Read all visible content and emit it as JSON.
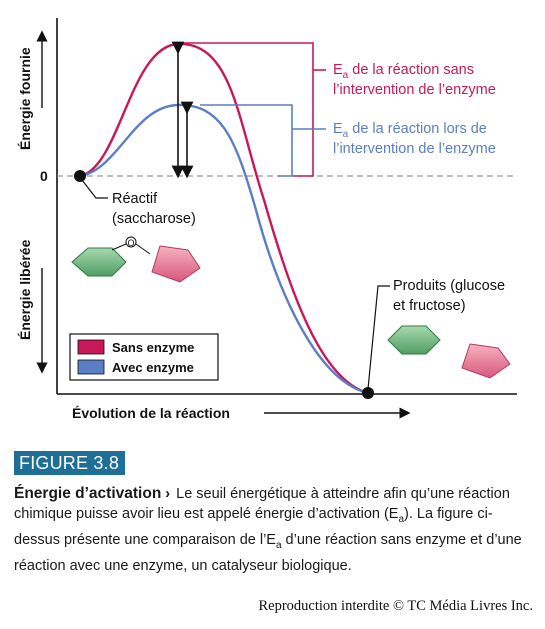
{
  "axes": {
    "ylabel_top": "Énergie fournie",
    "ylabel_bottom": "Énergie libérée",
    "xlabel": "Évolution de la réaction",
    "zero_label": "0"
  },
  "annotations": {
    "ea_without_line1": "de la réaction sans",
    "ea_without_line2": "l’intervention de l’enzyme",
    "ea_with_line1": "de la réaction lors de",
    "ea_with_line2": "l’intervention de l’enzyme",
    "ea_symbol": "E",
    "ea_subscript": "a",
    "reactant_line1": "Réactif",
    "reactant_line2": "(saccharose)",
    "products_line1": "Produits (glucose",
    "products_line2": "et fructose)",
    "oxygen": "O"
  },
  "legend": {
    "items": [
      {
        "label": "Sans enzyme",
        "color": "#c8185a"
      },
      {
        "label": "Avec enzyme",
        "color": "#5b7fc4"
      }
    ]
  },
  "figure": {
    "label": "FIGURE 3.8",
    "title": "Énergie d’activation",
    "arrow": "›",
    "text_part1": "Le seuil énergétique à atteindre afin qu’une réaction chimique puisse avoir lieu est appelé énergie d’activation (E",
    "text_sub1": "a",
    "text_part2": "). La figure ci-dessus présente une comparaison de l’E",
    "text_sub2": "a",
    "text_part3": " d’une réaction sans enzyme et d’une réaction avec une enzyme, un catalyseur biologique."
  },
  "copyright": "Reproduction interdite © TC Média Livres Inc.",
  "colors": {
    "no_enzyme": "#c8185a",
    "with_enzyme": "#5b7fc4",
    "hexagon_fill": "#7fbf8f",
    "pentagon_fill": "#e88aa0",
    "figure_label_bg": "#1f6e97"
  }
}
